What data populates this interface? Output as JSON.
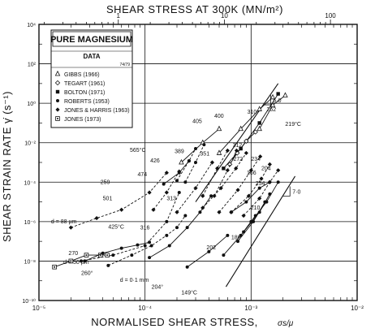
{
  "chart_data": {
    "type": "line",
    "title_top": "SHEAR STRESS AT 300K (MN/m²)",
    "xlabel": "NORMALISED SHEAR STRESS,",
    "xlabel_symbol": "σs/μ",
    "ylabel": "SHEAR STRAIN RATE γ̇ (s⁻¹)",
    "xscale": "log",
    "yscale": "log",
    "xlim": [
      1e-05,
      0.01
    ],
    "ylim": [
      1e-10,
      10000.0
    ],
    "x_ticks": [
      "10⁻⁵",
      "10⁻⁴",
      "10⁻³",
      "10⁻²"
    ],
    "y_ticks": [
      "10⁻¹⁰",
      "10⁻⁸",
      "10⁻⁶",
      "10⁻⁴",
      "10⁻²",
      "10⁰",
      "10²",
      "10⁴"
    ],
    "top_ticks": [
      "1",
      "10",
      "100"
    ],
    "legend": {
      "title": "PURE MAGNESIUM",
      "subtitle": "DATA",
      "code": "74/79",
      "entries": [
        {
          "marker": "triangle-open",
          "label": "GIBBS (1966)"
        },
        {
          "marker": "diamond-open",
          "label": "TEGART (1961)"
        },
        {
          "marker": "square-filled",
          "label": "BOLTON (1971)"
        },
        {
          "marker": "circle-filled",
          "label": "ROBERTS (1953)"
        },
        {
          "marker": "diamond-filled",
          "label": "JONES & HARRIS (1963)"
        },
        {
          "marker": "square-dot",
          "label": "JONES (1973)"
        }
      ]
    },
    "series": [
      {
        "marker": "triangle-open",
        "style": "solid",
        "x": [
          0.00022,
          0.00035,
          0.0005
        ],
        "y": [
          0.001,
          0.01,
          0.05
        ]
      },
      {
        "marker": "triangle-open",
        "style": "solid",
        "x": [
          0.0005,
          0.0008,
          0.0012,
          0.0016
        ],
        "y": [
          0.003,
          0.05,
          0.5,
          2
        ]
      },
      {
        "marker": "square-filled",
        "style": "solid",
        "x": [
          0.00055,
          0.0008,
          0.0012,
          0.0018
        ],
        "y": [
          0.0005,
          0.005,
          0.1,
          3
        ]
      },
      {
        "marker": "triangle-open",
        "style": "solid",
        "x": [
          0.0012,
          0.0016,
          0.0021
        ],
        "y": [
          0.05,
          0.8,
          2.5
        ]
      },
      {
        "marker": "diamond-open",
        "style": "solid",
        "x": [
          0.00063,
          0.00074,
          0.0009,
          0.0011
        ],
        "y": [
          0.0008,
          0.003,
          0.012,
          0.035
        ]
      },
      {
        "marker": "circle-filled",
        "style": "dashed",
        "x": [
          0.0002,
          0.00026,
          0.0003
        ],
        "y": [
          0.00012,
          0.0012,
          0.005
        ]
      },
      {
        "marker": "circle-filled",
        "style": "dashed",
        "x": [
          0.00024,
          0.0003,
          0.00036
        ],
        "y": [
          0.0001,
          0.001,
          0.008
        ]
      },
      {
        "marker": "diamond-filled",
        "style": "dashed",
        "x": [
          0.00035,
          0.00048,
          0.0006
        ],
        "y": [
          2e-05,
          0.0005,
          0.004
        ]
      },
      {
        "marker": "diamond-filled",
        "style": "dashed",
        "x": [
          0.00045,
          0.0006,
          0.00073
        ],
        "y": [
          2e-05,
          0.0004,
          0.004
        ]
      },
      {
        "marker": "circle-filled",
        "style": "solid",
        "x": [
          0.00015,
          0.00021,
          0.00026
        ],
        "y": [
          8e-05,
          0.0003,
          0.0012
        ]
      },
      {
        "marker": "diamond-filled",
        "style": "dashed",
        "x": [
          0.00012,
          0.00016,
          0.00021
        ],
        "y": [
          4e-06,
          3e-05,
          0.00035
        ]
      },
      {
        "marker": "diamond-filled",
        "style": "dashed",
        "x": [
          0.0002,
          0.0003,
          0.00043
        ],
        "y": [
          3e-06,
          5e-05,
          0.001
        ]
      },
      {
        "marker": "diamond-filled",
        "style": "dashed",
        "x": [
          0.00035,
          0.00052,
          0.00072,
          0.0009
        ],
        "y": [
          5e-06,
          5e-05,
          0.0005,
          0.003
        ]
      },
      {
        "marker": "diamond-filled",
        "style": "dashed",
        "x": [
          0.0005,
          0.00075,
          0.001,
          0.00122
        ],
        "y": [
          3e-06,
          4e-05,
          0.0004,
          0.002
        ]
      },
      {
        "marker": "diamond-filled",
        "style": "dashed",
        "x": [
          0.00065,
          0.00095,
          0.00125,
          0.0015
        ],
        "y": [
          3e-06,
          2e-05,
          0.00015,
          0.0008
        ]
      },
      {
        "marker": "diamond-filled",
        "style": "dashed",
        "x": [
          0.00085,
          0.0012,
          0.0015,
          0.0018
        ],
        "y": [
          2e-06,
          1.5e-05,
          0.0001,
          0.0004
        ]
      },
      {
        "marker": "diamond-filled",
        "style": "dashed",
        "x": [
          2e-05,
          3.5e-05,
          6e-05,
          0.00011,
          0.00016
        ],
        "y": [
          5e-07,
          1.5e-06,
          4e-06,
          3e-05,
          0.0003
        ]
      },
      {
        "marker": "circle-filled",
        "style": "dashed",
        "x": [
          2.5e-05,
          5e-05,
          0.0001,
          0.00016,
          0.00021
        ],
        "y": [
          1e-08,
          2e-08,
          6e-08,
          1e-06,
          3e-05
        ]
      },
      {
        "marker": "circle-filled",
        "style": "dashed",
        "x": [
          4.5e-05,
          7.5e-05,
          0.000115,
          0.00016,
          0.0002,
          0.00024
        ],
        "y": [
          6e-09,
          2e-08,
          6e-08,
          2e-07,
          5e-07,
          2e-06
        ]
      },
      {
        "marker": "circle-filled",
        "style": "solid",
        "x": [
          0.00011,
          0.00017,
          0.00025,
          0.00033,
          0.00042
        ],
        "y": [
          1.5e-08,
          6e-08,
          5e-07,
          3e-06,
          2e-05
        ]
      },
      {
        "marker": "square-dot",
        "style": "solid",
        "x": [
          1.4e-05,
          2e-05,
          2.8e-05,
          3.8e-05,
          4.4e-05
        ],
        "y": [
          5e-09,
          1e-08,
          2e-08,
          2e-08,
          2e-08
        ]
      },
      {
        "marker": "circle-filled",
        "style": "solid",
        "x": [
          2.7e-05,
          4e-05,
          6e-05,
          8.5e-05,
          0.00011
        ],
        "y": [
          1e-08,
          2.5e-08,
          4.5e-08,
          6.5e-08,
          9e-08
        ]
      },
      {
        "marker": "circle-filled",
        "style": "solid",
        "x": [
          0.00025,
          0.0004,
          0.0006
        ],
        "y": [
          5e-09,
          3e-08,
          2e-07
        ]
      },
      {
        "marker": "circle-filled",
        "style": "solid",
        "x": [
          0.00055,
          0.0008,
          0.0011
        ],
        "y": [
          2e-08,
          2e-07,
          2e-06
        ]
      },
      {
        "marker": "circle-filled",
        "style": "solid",
        "x": [
          0.00075,
          0.00105,
          0.00135
        ],
        "y": [
          1e-07,
          1e-06,
          1e-05
        ]
      },
      {
        "marker": "circle-filled",
        "style": "solid",
        "x": [
          0.00085,
          0.0012,
          0.0015
        ],
        "y": [
          3e-07,
          3e-06,
          2.5e-05
        ]
      },
      {
        "marker": "circle-filled",
        "style": "solid",
        "x": [
          0.001,
          0.0014,
          0.0018
        ],
        "y": [
          1e-06,
          1e-05,
          0.0001
        ]
      },
      {
        "marker": "circle-filled",
        "style": "solid",
        "x": [
          0.00065,
          0.0009,
          0.0012,
          0.0015
        ],
        "y": [
          3e-06,
          1e-05,
          5e-05,
          0.0001
        ]
      }
    ],
    "guides": [
      {
        "x": [
          0.0003,
          0.0018
        ],
        "y": [
          1e-05,
          10
        ],
        "label": "5·0"
      },
      {
        "x": [
          0.00058,
          0.0026
        ],
        "y": [
          5e-10,
          0.0002
        ],
        "label": "7·0"
      }
    ],
    "annotations": [
      {
        "text": "405",
        "x": 0.00028,
        "y": 0.1
      },
      {
        "text": "400",
        "x": 0.00045,
        "y": 0.18
      },
      {
        "text": "310",
        "x": 0.00092,
        "y": 0.3
      },
      {
        "text": "262",
        "x": 0.0014,
        "y": 0.4
      },
      {
        "text": "219°C",
        "x": 0.0021,
        "y": 0.07
      },
      {
        "text": "312",
        "x": 0.00067,
        "y": 0.006
      },
      {
        "text": "565°C",
        "x": 7.2e-05,
        "y": 0.0035
      },
      {
        "text": "389",
        "x": 0.00019,
        "y": 0.003
      },
      {
        "text": "351",
        "x": 0.00033,
        "y": 0.0022
      },
      {
        "text": "272",
        "x": 0.00068,
        "y": 0.0012
      },
      {
        "text": "234",
        "x": 0.001,
        "y": 0.0012
      },
      {
        "text": "426",
        "x": 0.000112,
        "y": 0.001
      },
      {
        "text": "204",
        "x": 0.00125,
        "y": 0.0004
      },
      {
        "text": "474",
        "x": 8.5e-05,
        "y": 0.0002
      },
      {
        "text": "166",
        "x": 0.00091,
        "y": 0.00024
      },
      {
        "text": "259",
        "x": 3.8e-05,
        "y": 8e-05
      },
      {
        "text": "254",
        "x": 0.0011,
        "y": 7e-05
      },
      {
        "text": "313",
        "x": 0.00016,
        "y": 1.2e-05
      },
      {
        "text": "501",
        "x": 4e-05,
        "y": 1.2e-05
      },
      {
        "text": "210",
        "x": 0.00099,
        "y": 4e-06
      },
      {
        "text": "d = 88 µm",
        "x": 1.3e-05,
        "y": 8e-07
      },
      {
        "text": "425°C",
        "x": 4.5e-05,
        "y": 4.5e-07
      },
      {
        "text": "316",
        "x": 9e-05,
        "y": 4e-07
      },
      {
        "text": "270",
        "x": 1.9e-05,
        "y": 2e-08
      },
      {
        "text": "d = 50 µm",
        "x": 1.7e-05,
        "y": 7e-09
      },
      {
        "text": "186",
        "x": 0.00065,
        "y": 1.3e-07
      },
      {
        "text": "202",
        "x": 0.00038,
        "y": 4e-08
      },
      {
        "text": "260°",
        "x": 2.5e-05,
        "y": 2e-09
      },
      {
        "text": "d = 0·1 mm",
        "x": 5.8e-05,
        "y": 9e-10
      },
      {
        "text": "204°",
        "x": 0.000115,
        "y": 4e-10
      },
      {
        "text": "149°C",
        "x": 0.00022,
        "y": 2e-10
      }
    ]
  }
}
